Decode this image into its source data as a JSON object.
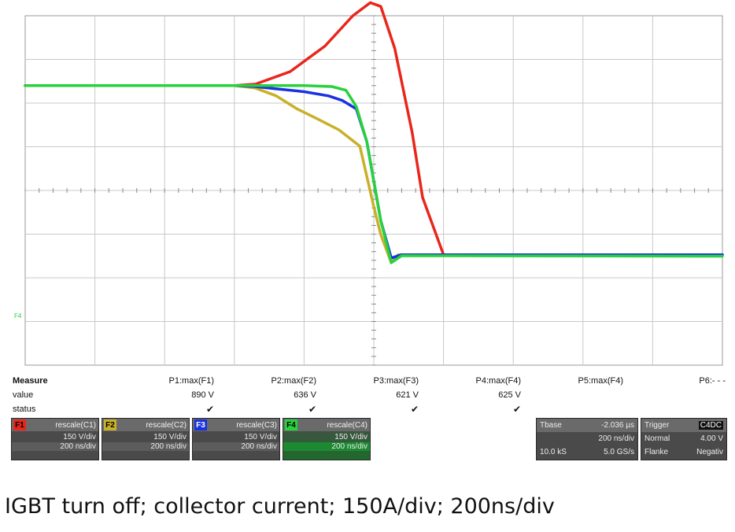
{
  "chart_data": {
    "type": "line",
    "caption": "IGBT turn off; collector current; 150A/div; 200ns/div",
    "x_unit": "ns",
    "y_unit": "A",
    "x_range": [
      -1000,
      1000
    ],
    "y_range": [
      -300,
      450
    ],
    "grid": true,
    "series": [
      {
        "name": "F1",
        "color": "#e8261c",
        "x": [
          -1000,
          -400,
          -340,
          -240,
          -140,
          -60,
          -10,
          20,
          60,
          110,
          140,
          200,
          1000
        ],
        "y": [
          300,
          300,
          303,
          330,
          385,
          450,
          478,
          470,
          380,
          200,
          60,
          -63,
          -63
        ]
      },
      {
        "name": "F2",
        "color": "#c8b02a",
        "x": [
          -1000,
          -400,
          -340,
          -280,
          -220,
          -160,
          -100,
          -40,
          0,
          20,
          50,
          70,
          1000
        ],
        "y": [
          300,
          300,
          295,
          278,
          250,
          228,
          205,
          170,
          40,
          -20,
          -80,
          -63,
          -63
        ]
      },
      {
        "name": "F3",
        "color": "#1832e0",
        "x": [
          -1000,
          -400,
          -340,
          -280,
          -200,
          -130,
          -90,
          -50,
          -20,
          20,
          50,
          80,
          1000
        ],
        "y": [
          300,
          300,
          298,
          293,
          287,
          278,
          268,
          250,
          180,
          10,
          -70,
          -63,
          -63
        ]
      },
      {
        "name": "F4",
        "color": "#28d23c",
        "x": [
          -1000,
          -400,
          -300,
          -200,
          -120,
          -80,
          -50,
          -20,
          20,
          50,
          80,
          1000
        ],
        "y": [
          300,
          300,
          300,
          300,
          298,
          290,
          255,
          180,
          10,
          -80,
          -65,
          -66
        ]
      }
    ],
    "trigger_marker": "F4"
  },
  "measure": {
    "title": "Measure",
    "row_value": "value",
    "row_status": "status",
    "params": [
      {
        "name": "P1:max(F1)",
        "value": "890 V",
        "status": "✔"
      },
      {
        "name": "P2:max(F2)",
        "value": "636 V",
        "status": "✔"
      },
      {
        "name": "P3:max(F3)",
        "value": "621 V",
        "status": "✔"
      },
      {
        "name": "P4:max(F4)",
        "value": "625 V",
        "status": "✔"
      },
      {
        "name": "P5:max(F4)",
        "value": "",
        "status": ""
      },
      {
        "name": "P6:- - -",
        "value": "",
        "status": ""
      }
    ]
  },
  "channels": [
    {
      "tag": "F1",
      "color": "#e8261c",
      "name": "rescale(C1)",
      "scale": "150 V/div",
      "time": "200 ns/div"
    },
    {
      "tag": "F2",
      "color": "#c8b02a",
      "name": "rescale(C2)",
      "scale": "150 V/div",
      "time": "200 ns/div"
    },
    {
      "tag": "F3",
      "color": "#1832e0",
      "name": "rescale(C3)",
      "scale": "150 V/div",
      "time": "200 ns/div"
    },
    {
      "tag": "F4",
      "color": "#28d23c",
      "name": "rescale(C4)",
      "scale": "150 V/div",
      "time": "200 ns/div"
    }
  ],
  "timebase": {
    "label": "Tbase",
    "offset": "-2.036 µs",
    "div": "200 ns/div",
    "samples": "10.0 kS",
    "rate": "5.0 GS/s"
  },
  "trigger": {
    "label": "Trigger",
    "badge": "C4DC",
    "mode": "Normal",
    "level": "4.00 V",
    "edge_label": "Flanke",
    "edge": "Negativ"
  }
}
